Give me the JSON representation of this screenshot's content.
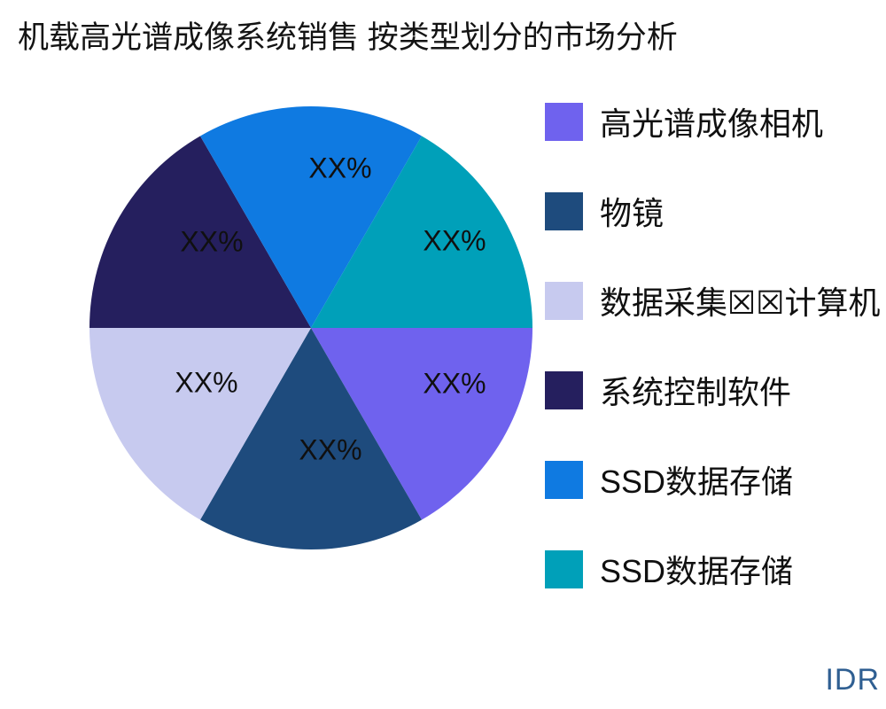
{
  "header": {
    "title": "机载高光谱成像系统销售 按类型划分的市场分析"
  },
  "footer": {
    "brand": "IDR",
    "brand_color": "#2F5F92"
  },
  "chart_data": {
    "type": "pie",
    "title": "机载高光谱成像系统销售 按类型划分的市场分析",
    "direction": "clockwise",
    "start_angle_deg": 0,
    "slice_angle_deg": 60,
    "legend_position": "right",
    "categories": [
      "高光谱成像相机",
      "物镜",
      "数据采集☒☒计算机",
      "系统控制软件",
      "SSD数据存储",
      "SSD数据存储"
    ],
    "values": [
      16.67,
      16.67,
      16.67,
      16.67,
      16.67,
      16.67
    ],
    "value_labels": [
      "XX%",
      "XX%",
      "XX%",
      "XX%",
      "XX%",
      "XX%"
    ],
    "colors": [
      "#6F62EE",
      "#1E4B7D",
      "#C7CAEF",
      "#251F5E",
      "#0F7AE1",
      "#00A0B9"
    ],
    "note": "six equal 60° slices drawn clockwise from 3 o'clock, percentages masked as XX%"
  }
}
